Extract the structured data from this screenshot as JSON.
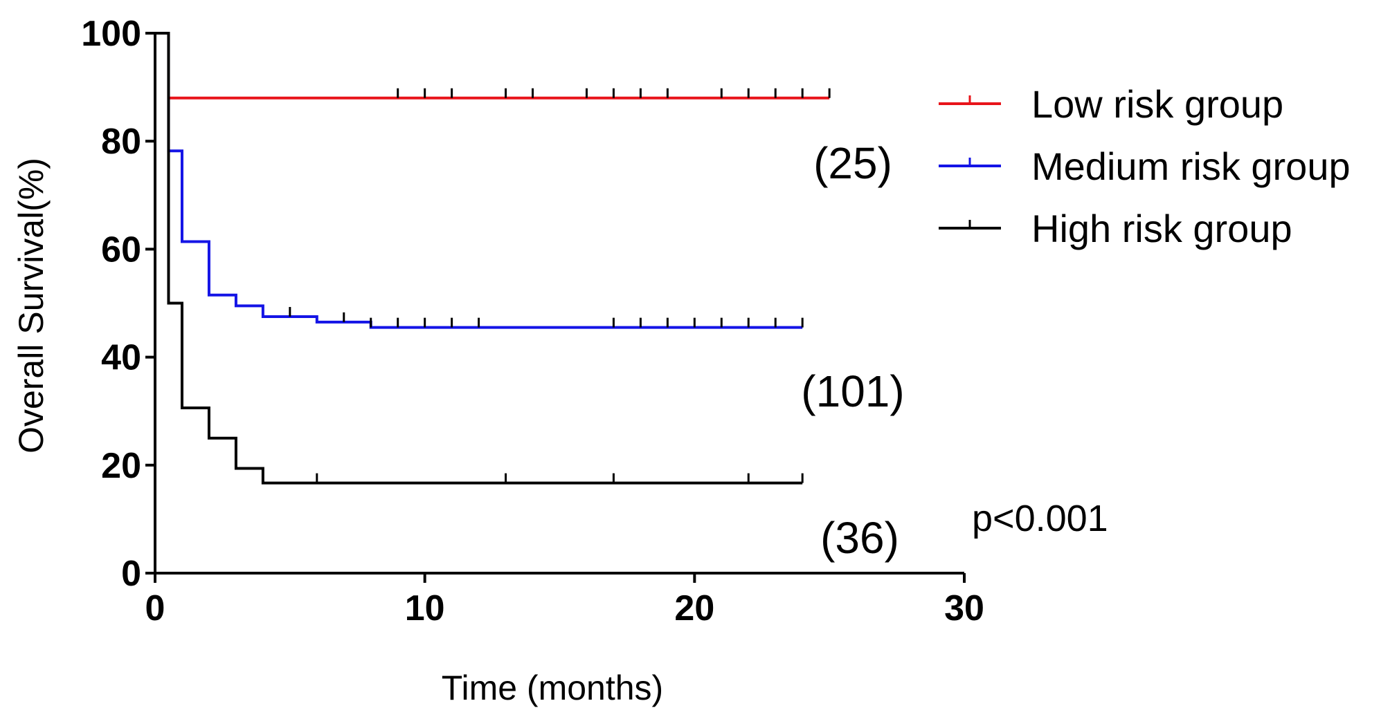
{
  "chart_data": {
    "type": "line",
    "subtype": "kaplan-meier-step",
    "title": "",
    "xlabel": "Time (months)",
    "ylabel": "Overall Survival(%)",
    "xlim": [
      0,
      30
    ],
    "ylim": [
      0,
      100
    ],
    "xticks": [
      0,
      10,
      20,
      30
    ],
    "yticks": [
      0,
      20,
      40,
      60,
      80,
      100
    ],
    "grid": false,
    "legend_position": "top-right",
    "colors": {
      "low": "#e8141a",
      "medium": "#1414e6",
      "high": "#000000",
      "axis": "#000000"
    },
    "series": [
      {
        "name": "Low risk group",
        "key": "low",
        "color": "#e8141a",
        "n_label": "(25)",
        "steps": [
          [
            0,
            100
          ],
          [
            0.5,
            88
          ],
          [
            25,
            88
          ]
        ],
        "censor": [
          9,
          10,
          11,
          13,
          14,
          16,
          17,
          18,
          19,
          21,
          22,
          23,
          24,
          25
        ]
      },
      {
        "name": "Medium risk group",
        "key": "medium",
        "color": "#1414e6",
        "n_label": "(101)",
        "steps": [
          [
            0,
            100
          ],
          [
            0.5,
            78.2
          ],
          [
            1,
            61.4
          ],
          [
            2,
            51.5
          ],
          [
            3,
            49.5
          ],
          [
            4,
            47.5
          ],
          [
            6,
            46.5
          ],
          [
            8,
            45.5
          ],
          [
            24,
            45.5
          ]
        ],
        "censor": [
          5,
          7,
          8,
          9,
          10,
          11,
          12,
          17,
          18,
          19,
          20,
          21,
          22,
          23,
          24
        ]
      },
      {
        "name": "High risk group",
        "key": "high",
        "color": "#000000",
        "n_label": "(36)",
        "steps": [
          [
            0,
            100
          ],
          [
            0.5,
            50
          ],
          [
            1,
            30.6
          ],
          [
            2,
            25
          ],
          [
            3,
            19.4
          ],
          [
            4,
            16.7
          ],
          [
            24,
            16.7
          ]
        ],
        "censor": [
          6,
          13,
          17,
          22,
          24
        ]
      }
    ],
    "annotations": {
      "p_value": "p<0.001"
    }
  }
}
